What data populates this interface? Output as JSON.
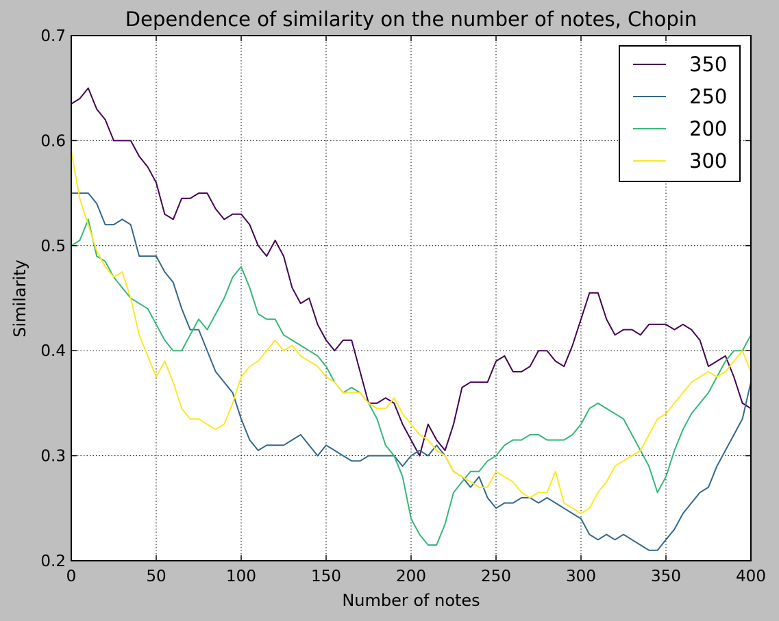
{
  "chart_data": {
    "type": "line",
    "title": "Dependence of similarity on the number of notes, Chopin",
    "xlabel": "Number of notes",
    "ylabel": "Similarity",
    "xlim": [
      0,
      400
    ],
    "ylim": [
      0.2,
      0.7
    ],
    "xticks": [
      0,
      50,
      100,
      150,
      200,
      250,
      300,
      350,
      400
    ],
    "yticks": [
      0.2,
      0.3,
      0.4,
      0.5,
      0.6,
      0.7
    ],
    "xtick_labels": [
      "0",
      "50",
      "100",
      "150",
      "200",
      "250",
      "300",
      "350",
      "400"
    ],
    "ytick_labels": [
      "0.2",
      "0.3",
      "0.4",
      "0.5",
      "0.6",
      "0.7"
    ],
    "grid": true,
    "legend_position": "top-right",
    "series": [
      {
        "name": "350",
        "color": "#440154",
        "x": [
          0,
          5,
          10,
          15,
          20,
          25,
          30,
          35,
          40,
          45,
          50,
          55,
          60,
          65,
          70,
          75,
          80,
          85,
          90,
          95,
          100,
          105,
          110,
          115,
          120,
          125,
          130,
          135,
          140,
          145,
          150,
          155,
          160,
          165,
          170,
          175,
          180,
          185,
          190,
          195,
          200,
          205,
          210,
          215,
          220,
          225,
          230,
          235,
          240,
          245,
          250,
          255,
          260,
          265,
          270,
          275,
          280,
          285,
          290,
          295,
          300,
          305,
          310,
          315,
          320,
          325,
          330,
          335,
          340,
          345,
          350,
          355,
          360,
          365,
          370,
          375,
          380,
          385,
          390,
          395,
          400
        ],
        "y": [
          0.635,
          0.64,
          0.65,
          0.63,
          0.62,
          0.6,
          0.6,
          0.6,
          0.585,
          0.575,
          0.56,
          0.53,
          0.525,
          0.545,
          0.545,
          0.55,
          0.55,
          0.535,
          0.525,
          0.53,
          0.53,
          0.52,
          0.5,
          0.49,
          0.505,
          0.49,
          0.46,
          0.445,
          0.45,
          0.425,
          0.41,
          0.4,
          0.41,
          0.41,
          0.38,
          0.35,
          0.35,
          0.355,
          0.35,
          0.33,
          0.315,
          0.3,
          0.33,
          0.315,
          0.305,
          0.33,
          0.365,
          0.37,
          0.37,
          0.37,
          0.39,
          0.395,
          0.38,
          0.38,
          0.385,
          0.4,
          0.4,
          0.39,
          0.385,
          0.405,
          0.43,
          0.455,
          0.455,
          0.43,
          0.415,
          0.42,
          0.42,
          0.415,
          0.425,
          0.425,
          0.425,
          0.42,
          0.425,
          0.42,
          0.41,
          0.385,
          0.39,
          0.395,
          0.375,
          0.35,
          0.345
        ]
      },
      {
        "name": "250",
        "color": "#31688e",
        "x": [
          0,
          5,
          10,
          15,
          20,
          25,
          30,
          35,
          40,
          45,
          50,
          55,
          60,
          65,
          70,
          75,
          80,
          85,
          90,
          95,
          100,
          105,
          110,
          115,
          120,
          125,
          130,
          135,
          140,
          145,
          150,
          155,
          160,
          165,
          170,
          175,
          180,
          185,
          190,
          195,
          200,
          205,
          210,
          215,
          220,
          225,
          230,
          235,
          240,
          245,
          250,
          255,
          260,
          265,
          270,
          275,
          280,
          285,
          290,
          295,
          300,
          305,
          310,
          315,
          320,
          325,
          330,
          335,
          340,
          345,
          350,
          355,
          360,
          365,
          370,
          375,
          380,
          385,
          390,
          395,
          400
        ],
        "y": [
          0.55,
          0.55,
          0.55,
          0.54,
          0.52,
          0.52,
          0.525,
          0.52,
          0.49,
          0.49,
          0.49,
          0.475,
          0.465,
          0.44,
          0.42,
          0.42,
          0.4,
          0.38,
          0.37,
          0.36,
          0.335,
          0.315,
          0.305,
          0.31,
          0.31,
          0.31,
          0.315,
          0.32,
          0.31,
          0.3,
          0.31,
          0.305,
          0.3,
          0.295,
          0.295,
          0.3,
          0.3,
          0.3,
          0.3,
          0.29,
          0.3,
          0.305,
          0.3,
          0.31,
          0.3,
          0.285,
          0.28,
          0.27,
          0.28,
          0.26,
          0.25,
          0.255,
          0.255,
          0.26,
          0.26,
          0.255,
          0.26,
          0.255,
          0.25,
          0.245,
          0.24,
          0.225,
          0.22,
          0.225,
          0.22,
          0.225,
          0.22,
          0.215,
          0.21,
          0.21,
          0.22,
          0.23,
          0.245,
          0.255,
          0.265,
          0.27,
          0.29,
          0.305,
          0.32,
          0.335,
          0.37
        ]
      },
      {
        "name": "200",
        "color": "#35b779",
        "x": [
          0,
          5,
          10,
          15,
          20,
          25,
          30,
          35,
          40,
          45,
          50,
          55,
          60,
          65,
          70,
          75,
          80,
          85,
          90,
          95,
          100,
          105,
          110,
          115,
          120,
          125,
          130,
          135,
          140,
          145,
          150,
          155,
          160,
          165,
          170,
          175,
          180,
          185,
          190,
          195,
          200,
          205,
          210,
          215,
          220,
          225,
          230,
          235,
          240,
          245,
          250,
          255,
          260,
          265,
          270,
          275,
          280,
          285,
          290,
          295,
          300,
          305,
          310,
          315,
          320,
          325,
          330,
          335,
          340,
          345,
          350,
          355,
          360,
          365,
          370,
          375,
          380,
          385,
          390,
          395,
          400
        ],
        "y": [
          0.5,
          0.505,
          0.525,
          0.49,
          0.485,
          0.47,
          0.46,
          0.45,
          0.445,
          0.44,
          0.425,
          0.41,
          0.4,
          0.4,
          0.415,
          0.43,
          0.42,
          0.435,
          0.45,
          0.47,
          0.48,
          0.46,
          0.435,
          0.43,
          0.43,
          0.415,
          0.41,
          0.405,
          0.4,
          0.395,
          0.385,
          0.37,
          0.36,
          0.365,
          0.36,
          0.35,
          0.335,
          0.31,
          0.3,
          0.28,
          0.24,
          0.225,
          0.215,
          0.215,
          0.235,
          0.265,
          0.275,
          0.285,
          0.285,
          0.295,
          0.3,
          0.31,
          0.315,
          0.315,
          0.32,
          0.32,
          0.315,
          0.315,
          0.315,
          0.32,
          0.33,
          0.345,
          0.35,
          0.345,
          0.34,
          0.335,
          0.32,
          0.305,
          0.29,
          0.265,
          0.28,
          0.305,
          0.325,
          0.34,
          0.35,
          0.36,
          0.375,
          0.39,
          0.4,
          0.4,
          0.415
        ]
      },
      {
        "name": "300",
        "color": "#fde725",
        "x": [
          0,
          5,
          10,
          15,
          20,
          25,
          30,
          35,
          40,
          45,
          50,
          55,
          60,
          65,
          70,
          75,
          80,
          85,
          90,
          95,
          100,
          105,
          110,
          115,
          120,
          125,
          130,
          135,
          140,
          145,
          150,
          155,
          160,
          165,
          170,
          175,
          180,
          185,
          190,
          195,
          200,
          205,
          210,
          215,
          220,
          225,
          230,
          235,
          240,
          245,
          250,
          255,
          260,
          265,
          270,
          275,
          280,
          285,
          290,
          295,
          300,
          305,
          310,
          315,
          320,
          325,
          330,
          335,
          340,
          345,
          350,
          355,
          360,
          365,
          370,
          375,
          380,
          385,
          390,
          395,
          400
        ],
        "y": [
          0.59,
          0.545,
          0.52,
          0.495,
          0.48,
          0.47,
          0.475,
          0.45,
          0.415,
          0.395,
          0.375,
          0.39,
          0.37,
          0.345,
          0.335,
          0.335,
          0.33,
          0.325,
          0.33,
          0.35,
          0.375,
          0.385,
          0.39,
          0.4,
          0.41,
          0.4,
          0.405,
          0.395,
          0.39,
          0.385,
          0.375,
          0.37,
          0.36,
          0.36,
          0.36,
          0.35,
          0.345,
          0.345,
          0.355,
          0.34,
          0.33,
          0.32,
          0.315,
          0.305,
          0.3,
          0.285,
          0.28,
          0.275,
          0.27,
          0.27,
          0.285,
          0.28,
          0.275,
          0.265,
          0.26,
          0.265,
          0.265,
          0.285,
          0.255,
          0.25,
          0.245,
          0.25,
          0.265,
          0.275,
          0.29,
          0.295,
          0.3,
          0.305,
          0.32,
          0.335,
          0.34,
          0.35,
          0.36,
          0.37,
          0.375,
          0.38,
          0.375,
          0.38,
          0.39,
          0.4,
          0.38
        ]
      }
    ]
  }
}
